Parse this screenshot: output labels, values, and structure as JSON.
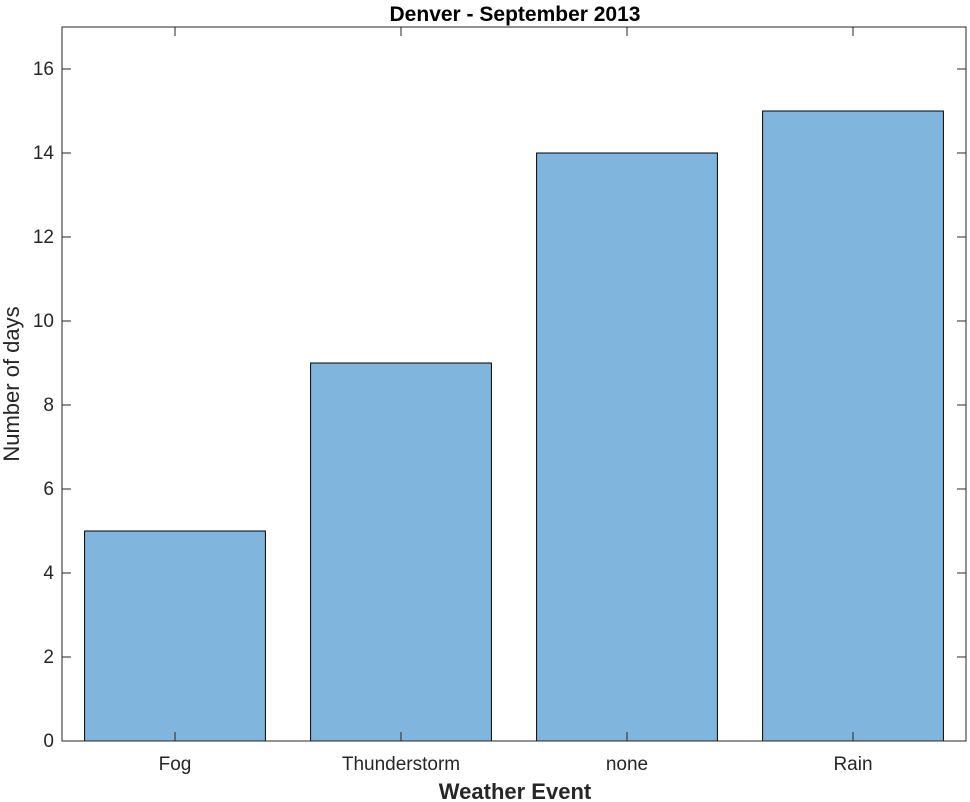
{
  "chart_data": {
    "type": "bar",
    "title": "Denver - September 2013",
    "xlabel": "Weather Event",
    "ylabel": "Number of days",
    "categories": [
      "Fog",
      "Thunderstorm",
      "none",
      "Rain"
    ],
    "values": [
      5,
      9,
      14,
      15
    ],
    "ylim": [
      0,
      17
    ],
    "yticks": [
      0,
      2,
      4,
      6,
      8,
      10,
      12,
      14,
      16
    ],
    "ytick_labels": [
      "0",
      "2",
      "4",
      "6",
      "8",
      "10",
      "12",
      "14",
      "16"
    ],
    "grid": false,
    "legend": "none",
    "colors": {
      "bar_fill": "#80b6de",
      "bar_edge": "#000000",
      "axis": "#262626",
      "background": "#ffffff"
    }
  }
}
